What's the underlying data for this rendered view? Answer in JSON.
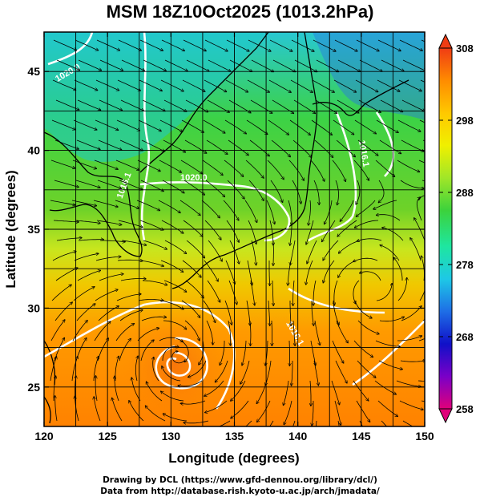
{
  "title": "MSM 18Z10Oct2025 (1013.2hPa)",
  "x_axis": {
    "label": "Longitude (degrees)",
    "range": [
      120,
      150
    ],
    "ticks": [
      "120",
      "125",
      "130",
      "135",
      "140",
      "145",
      "150"
    ]
  },
  "y_axis": {
    "label": "Latitude (degrees)",
    "range": [
      22.5,
      47.5
    ],
    "ticks": [
      "25",
      "30",
      "35",
      "40",
      "45"
    ]
  },
  "colorbar": {
    "range": [
      258,
      308
    ],
    "ticks": [
      "308",
      "298",
      "288",
      "278",
      "268",
      "258"
    ],
    "palette": [
      "#e0007a",
      "#7a00c8",
      "#1010c8",
      "#1e6ee6",
      "#1ec8e6",
      "#1ee6a0",
      "#3cd23c",
      "#a0e628",
      "#f0f000",
      "#ffc800",
      "#ff8c00",
      "#f03c14"
    ]
  },
  "contour_labels": [
    "1020.0",
    "1016.1",
    "1016.1",
    "1016.1",
    "1020.0"
  ],
  "credits": {
    "line1": "Drawing by DCL (https://www.gfd-dennou.org/library/dcl/)",
    "line2": "Data from http://database.rish.kyoto-u.ac.jp/arch/jmadata/"
  }
}
